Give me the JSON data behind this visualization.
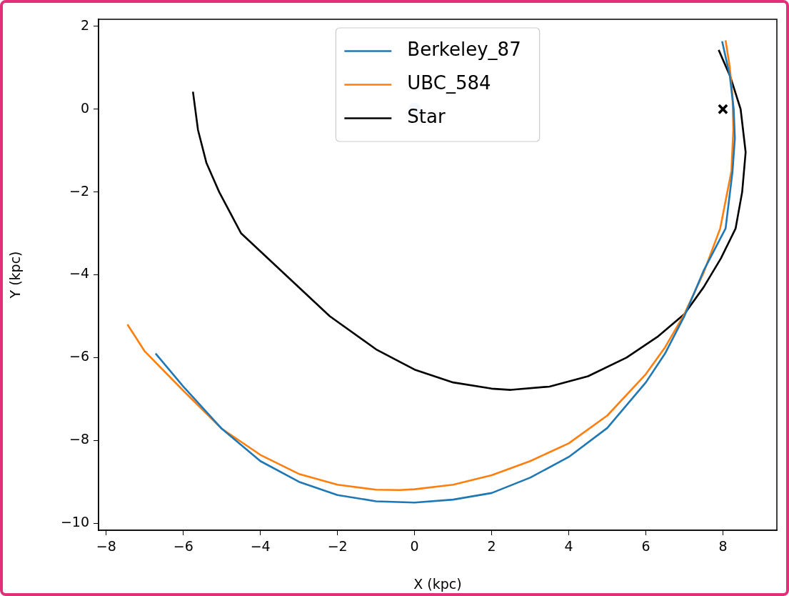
{
  "chart_data": {
    "type": "line",
    "xlabel": "X (kpc)",
    "ylabel": "Y (kpc)",
    "xlim": [
      -8.2,
      9.4
    ],
    "ylim": [
      -10.17,
      2.17
    ],
    "xticks": [
      {
        "value": -8,
        "label": "−8"
      },
      {
        "value": -6,
        "label": "−6"
      },
      {
        "value": -4,
        "label": "−4"
      },
      {
        "value": -2,
        "label": "−2"
      },
      0,
      2,
      4,
      6,
      8
    ],
    "yticks": [
      {
        "value": -10,
        "label": "−10"
      },
      {
        "value": -8,
        "label": "−8"
      },
      {
        "value": -6,
        "label": "−6"
      },
      {
        "value": -4,
        "label": "−4"
      },
      {
        "value": -2,
        "label": "−2"
      },
      0,
      2
    ],
    "grid": false,
    "legend": "top",
    "marker": "none",
    "line_style": "solid",
    "series": [
      {
        "name": "Berkeley_87",
        "color": "#1f77b4",
        "x": [
          -6.72,
          -6,
          -5,
          -4,
          -3,
          -2,
          -1,
          0,
          1,
          2,
          3,
          4,
          5,
          6,
          6.5,
          7,
          7.5,
          8.07,
          8.25,
          8.31,
          8.28,
          8.18,
          7.98
        ],
        "values": [
          -5.9,
          -6.7,
          -7.72,
          -8.5,
          -9.0,
          -9.32,
          -9.47,
          -9.5,
          -9.43,
          -9.27,
          -8.9,
          -8.4,
          -7.7,
          -6.6,
          -5.9,
          -5.0,
          -3.9,
          -2.88,
          -1.5,
          -0.7,
          0,
          0.8,
          1.64
        ]
      },
      {
        "name": "UBC_584",
        "color": "#ff7f0e",
        "x": [
          -7.45,
          -7,
          -6,
          -5,
          -4,
          -3,
          -2,
          -1,
          -0.39,
          0,
          1,
          2,
          3,
          4,
          5,
          6,
          6.5,
          7,
          7.5,
          7.93,
          8.22,
          8.27,
          8.25,
          8.18,
          8.07
        ],
        "values": [
          -5.2,
          -5.85,
          -6.8,
          -7.72,
          -8.35,
          -8.81,
          -9.07,
          -9.19,
          -9.2,
          -9.18,
          -9.07,
          -8.84,
          -8.5,
          -8.07,
          -7.4,
          -6.4,
          -5.75,
          -4.95,
          -3.95,
          -2.88,
          -1.5,
          -0.5,
          0.3,
          1.0,
          1.66
        ]
      },
      {
        "name": "Star",
        "color": "#000000",
        "x": [
          -5.75,
          -5.62,
          -5.4,
          -5.07,
          -4.5,
          -3.35,
          -2.2,
          -1,
          0,
          1,
          2,
          2.5,
          3.5,
          4.5,
          5.5,
          6.3,
          7,
          7.5,
          7.95,
          8.33,
          8.5,
          8.59,
          8.46,
          8.19,
          7.89
        ],
        "values": [
          0.42,
          -0.5,
          -1.3,
          -2,
          -3,
          -4,
          -5.0,
          -5.8,
          -6.29,
          -6.6,
          -6.75,
          -6.78,
          -6.7,
          -6.45,
          -6.0,
          -5.5,
          -4.95,
          -4.3,
          -3.6,
          -2.88,
          -2.0,
          -1.04,
          0,
          0.79,
          1.43
        ]
      },
      {
        "type": "scatter",
        "marker": "circle",
        "color": "#c6dbef",
        "x": [
          0
        ],
        "values": [
          0
        ]
      },
      {
        "type": "scatter",
        "marker": "cross",
        "color": "#000000",
        "x": [
          8
        ],
        "values": [
          0
        ]
      }
    ]
  }
}
